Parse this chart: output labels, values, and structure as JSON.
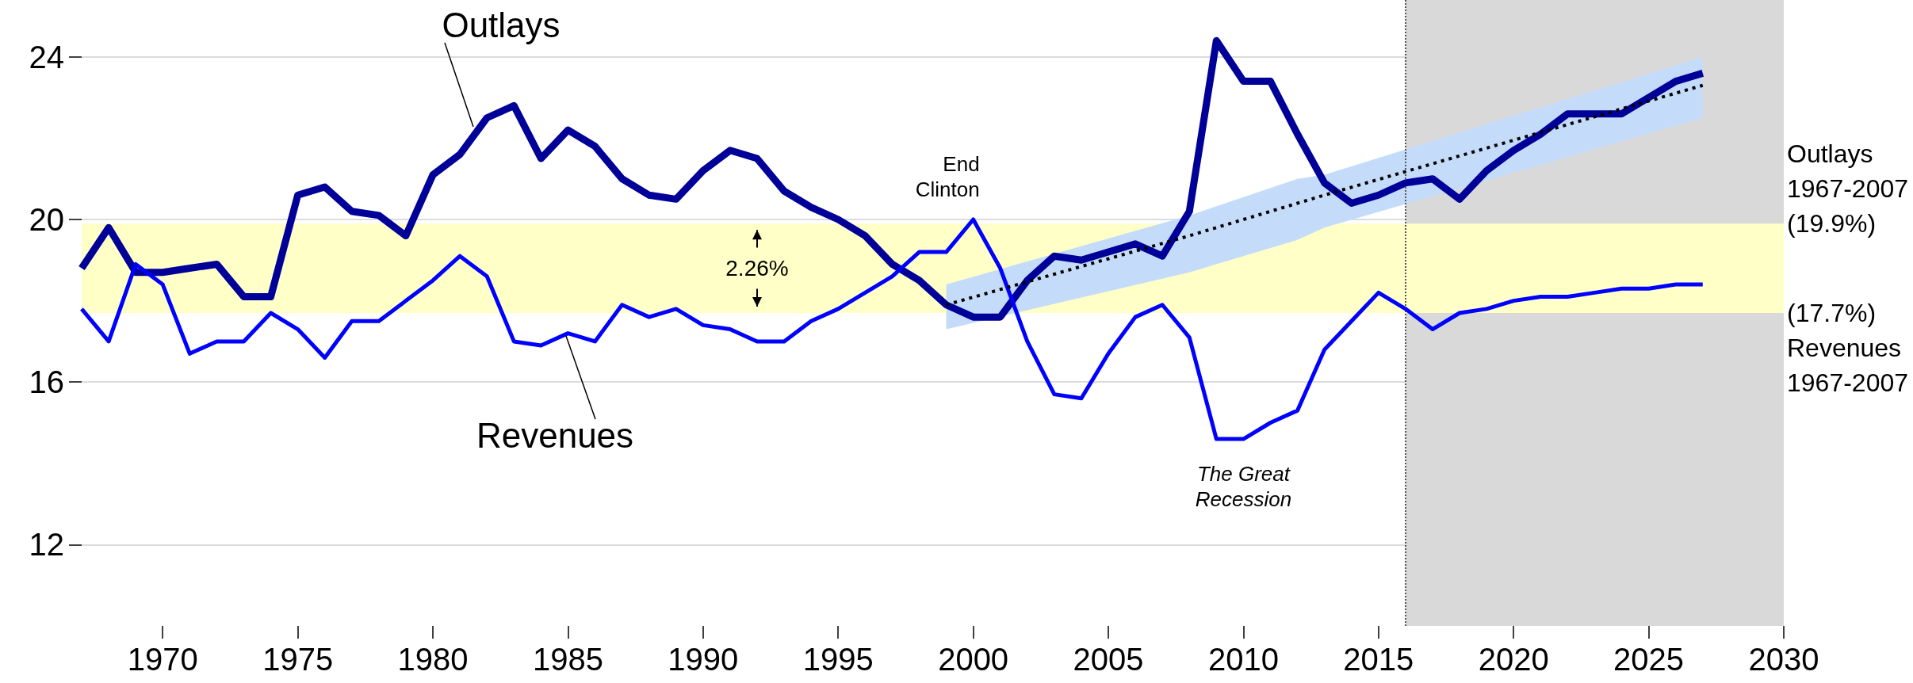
{
  "chart_data": {
    "type": "line",
    "x": [
      1967,
      1968,
      1969,
      1970,
      1971,
      1972,
      1973,
      1974,
      1975,
      1976,
      1977,
      1978,
      1979,
      1980,
      1981,
      1982,
      1983,
      1984,
      1985,
      1986,
      1987,
      1988,
      1989,
      1990,
      1991,
      1992,
      1993,
      1994,
      1995,
      1996,
      1997,
      1998,
      1999,
      2000,
      2001,
      2002,
      2003,
      2004,
      2005,
      2006,
      2007,
      2008,
      2009,
      2010,
      2011,
      2012,
      2013,
      2014,
      2015,
      2016,
      2017,
      2018,
      2019,
      2020,
      2021,
      2022,
      2023,
      2024,
      2025,
      2026,
      2027
    ],
    "series": [
      {
        "name": "Outlays",
        "color": "#000099",
        "values": [
          18.8,
          19.8,
          18.7,
          18.7,
          18.8,
          18.9,
          18.1,
          18.1,
          20.6,
          20.8,
          20.2,
          20.1,
          19.6,
          21.1,
          21.6,
          22.5,
          22.8,
          21.5,
          22.2,
          21.8,
          21.0,
          20.6,
          20.5,
          21.2,
          21.7,
          21.5,
          20.7,
          20.3,
          20.0,
          19.6,
          18.9,
          18.5,
          17.9,
          17.6,
          17.6,
          18.5,
          19.1,
          19.0,
          19.2,
          19.4,
          19.1,
          20.2,
          24.4,
          23.4,
          23.4,
          22.1,
          20.9,
          20.4,
          20.6,
          20.9,
          21.0,
          20.5,
          21.2,
          21.7,
          22.1,
          22.6,
          22.6,
          22.6,
          23.0,
          23.4,
          23.6
        ]
      },
      {
        "name": "Revenues",
        "color": "#0000ff",
        "values": [
          17.8,
          17.0,
          18.9,
          18.4,
          16.7,
          17.0,
          17.0,
          17.7,
          17.3,
          16.6,
          17.5,
          17.5,
          18.0,
          18.5,
          19.1,
          18.6,
          17.0,
          16.9,
          17.2,
          17.0,
          17.9,
          17.6,
          17.8,
          17.4,
          17.3,
          17.0,
          17.0,
          17.5,
          17.8,
          18.2,
          18.6,
          19.2,
          19.2,
          20.0,
          18.8,
          17.0,
          15.7,
          15.6,
          16.7,
          17.6,
          17.9,
          17.1,
          14.6,
          14.6,
          15.0,
          15.3,
          16.8,
          17.5,
          18.2,
          17.8,
          17.3,
          17.7,
          17.8,
          18.0,
          18.1,
          18.1,
          18.2,
          18.3,
          18.3,
          18.4,
          18.4
        ]
      },
      {
        "type": "line",
        "color": "#000000",
        "line_style": "dotted",
        "x": [
          1999,
          2008,
          2012,
          2013,
          2027
        ],
        "values": [
          17.9,
          19.6,
          20.4,
          20.6,
          23.3
        ],
        "lower": [
          17.3,
          18.7,
          19.5,
          19.8,
          22.5
        ],
        "upper": [
          18.4,
          20.1,
          21.0,
          21.1,
          24.0
        ]
      }
    ],
    "xlim": [
      1967,
      2030
    ],
    "xticks": [
      1970,
      1975,
      1980,
      1985,
      1990,
      1995,
      2000,
      2005,
      2010,
      2015,
      2020,
      2025,
      2030
    ],
    "ylim": [
      10,
      25.4
    ],
    "yticks": [
      12,
      16,
      20,
      24
    ],
    "grid": "y",
    "marker": "none",
    "line_style": "solid",
    "bands": [
      {
        "axis": "x",
        "from": 2016,
        "to": 2030,
        "color": "#d9d9d9"
      },
      {
        "axis": "y",
        "from": 17.7,
        "to": 19.9,
        "color": "#ffffc8"
      }
    ],
    "ref_lines": [
      {
        "axis": "x",
        "value": 2016,
        "color": "#555555",
        "line_style": "dotted"
      }
    ],
    "annotations": [
      {
        "text": "End\nClinton",
        "x": 2000,
        "y": 20
      },
      {
        "text": "The Great\nRecession",
        "x": 2010,
        "y": 14.6
      },
      "2.26%",
      "Outlays\n1967-2007\n(19.9%)",
      "(17.7%)\nRevenues\n1967-2007"
    ]
  }
}
